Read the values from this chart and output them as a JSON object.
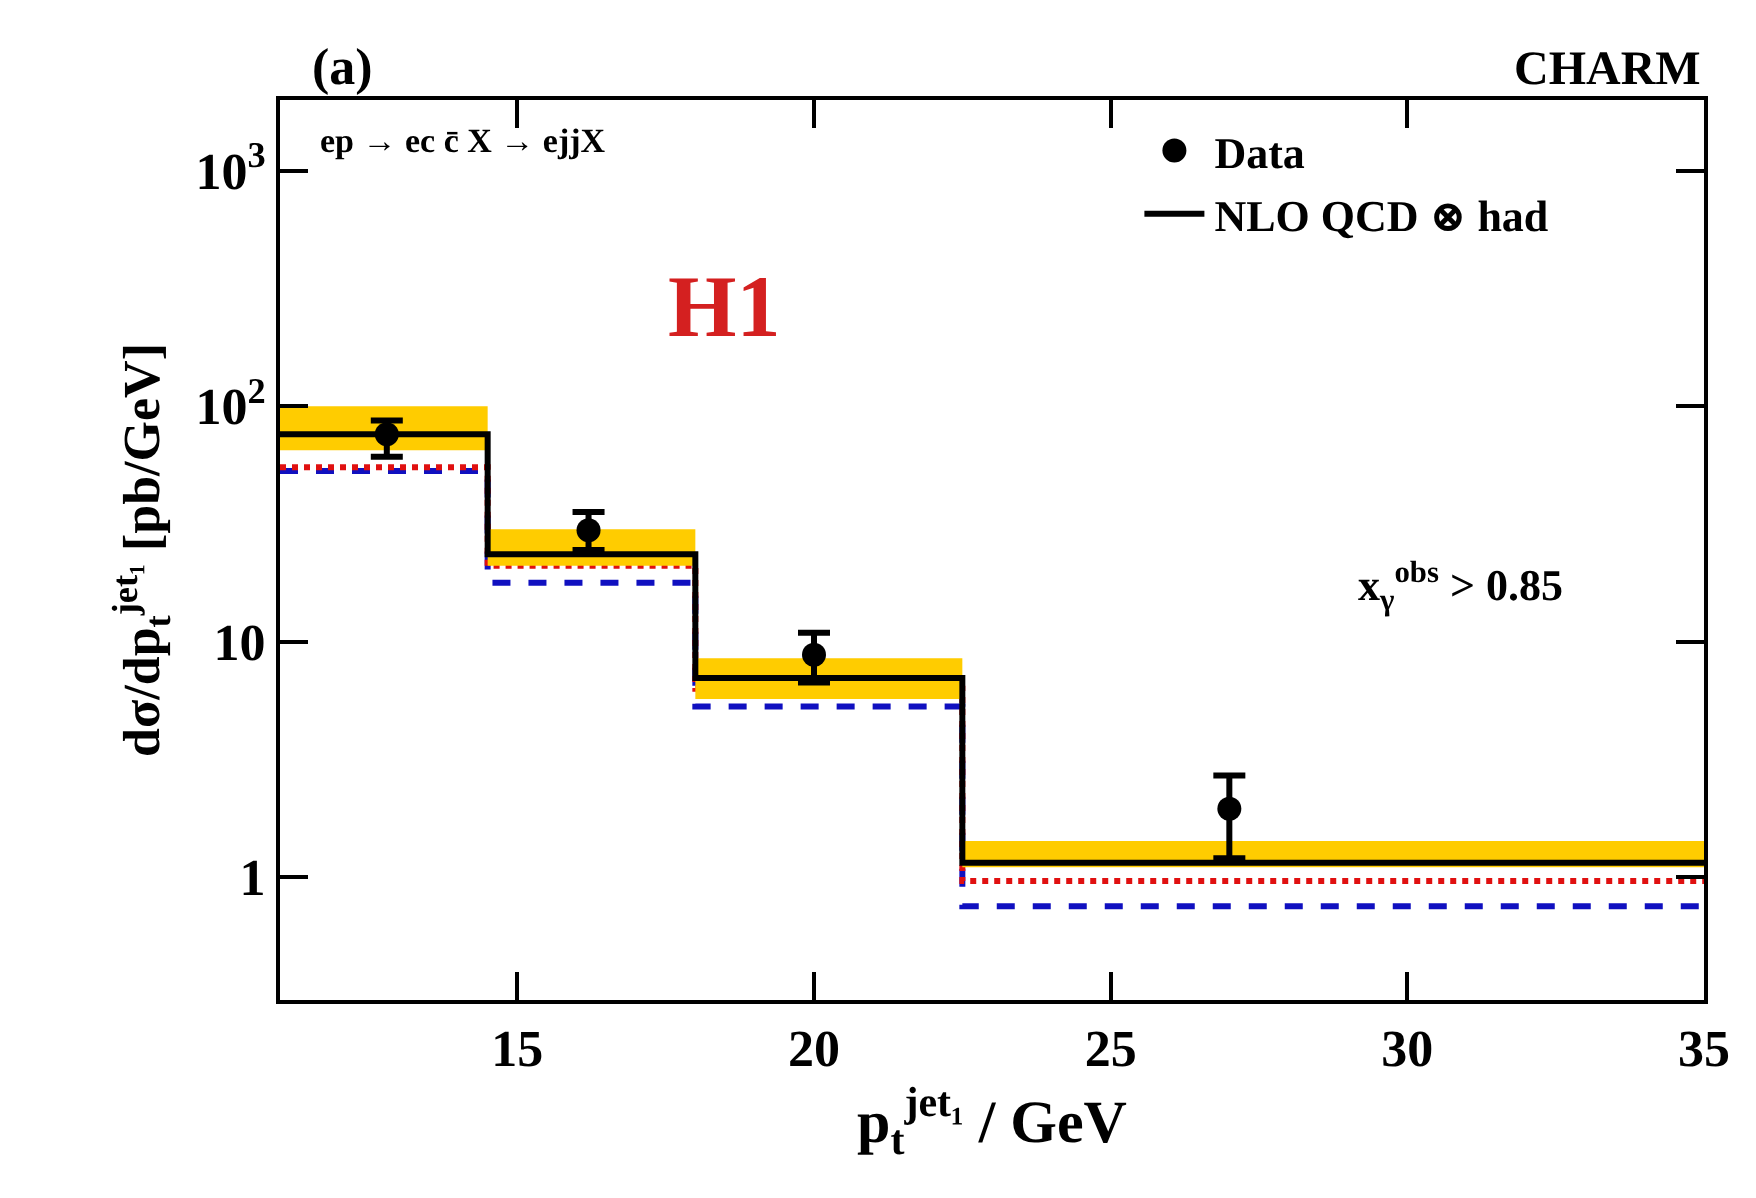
{
  "chart_data": {
    "type": "step",
    "xlabel": "p$_{t}$$^{jet₁}$ / GeV",
    "ylabel": "dσ/dp$_{t}$$^{jet₁}$ [pb/GeV]",
    "annotations": [
      "(a)",
      "CHARM",
      "ep → ec c̄ X → ejjX",
      "H1",
      "x$_{γ}$$^{obs}$ > 0.85"
    ],
    "x": [
      11,
      14.5,
      18,
      22.5,
      35
    ],
    "series": [
      {
        "name": "Data",
        "type": "scatter",
        "color": "#000000",
        "marker": "circle",
        "x": [
          12.8,
          16.2,
          20,
          27
        ],
        "values": [
          76,
          29.7,
          8.8,
          1.95
        ],
        "errors": [
          [
            61,
            87
          ],
          [
            24.5,
            35.5
          ],
          [
            6.7,
            10.9
          ],
          [
            1.2,
            2.7
          ]
        ]
      },
      {
        "color": "#1010c0",
        "line_style": "dashed",
        "values": [
          53,
          17.8,
          5.3,
          0.75,
          0.75
        ]
      },
      {
        "color": "#e01010",
        "line_style": "dotted",
        "values": [
          55,
          21,
          6.3,
          0.96,
          0.96
        ]
      },
      {
        "name": "NLO QCD ⊗ had",
        "color": "#000000",
        "line_style": "solid",
        "values": [
          76,
          23.5,
          7.0,
          1.15,
          1.15
        ],
        "lower": [
          65,
          21,
          5.7,
          1.1,
          1.1
        ],
        "upper": [
          100,
          30,
          8.5,
          1.42,
          1.42
        ]
      }
    ],
    "log": "y",
    "xlim": [
      11,
      35
    ],
    "xticks": [
      15,
      20,
      25,
      30,
      35
    ],
    "ylim": [
      0.3,
      2000
    ],
    "yticks": [
      1,
      10,
      {
        "value": 100,
        "label": "10$^{2}$"
      },
      {
        "value": 1000,
        "label": "10$^{3}$"
      }
    ],
    "grid": false,
    "legend": "top right"
  }
}
